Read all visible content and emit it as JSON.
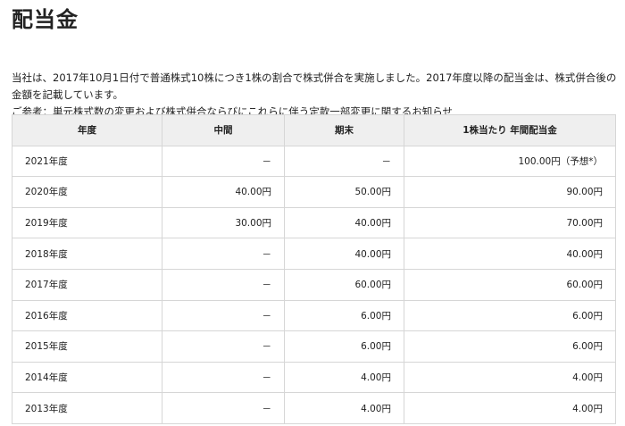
{
  "page_title": "配当金",
  "intro": {
    "text": "当社は、2017年10月1日付で普通株式10株につき1株の割合で株式併合を実施しました。2017年度以降の配当金は、株式併合後の金額を記載しています。",
    "reference_prefix": "ご参考：",
    "reference_link": "単元株式数の変更および株式併合ならびにこれらに伴う定款一部変更に関するお知らせ"
  },
  "table": {
    "headers": [
      "年度",
      "中間",
      "期末",
      "1株当たり 年間配当金"
    ],
    "rows": [
      [
        "2021年度",
        "－",
        "－",
        "100.00円（予想*）"
      ],
      [
        "2020年度",
        "40.00円",
        "50.00円",
        "90.00円"
      ],
      [
        "2019年度",
        "30.00円",
        "40.00円",
        "70.00円"
      ],
      [
        "2018年度",
        "－",
        "40.00円",
        "40.00円"
      ],
      [
        "2017年度",
        "－",
        "60.00円",
        "60.00円"
      ],
      [
        "2016年度",
        "－",
        "6.00円",
        "6.00円"
      ],
      [
        "2015年度",
        "－",
        "6.00円",
        "6.00円"
      ],
      [
        "2014年度",
        "－",
        "4.00円",
        "4.00円"
      ],
      [
        "2013年度",
        "－",
        "4.00円",
        "4.00円"
      ]
    ]
  }
}
